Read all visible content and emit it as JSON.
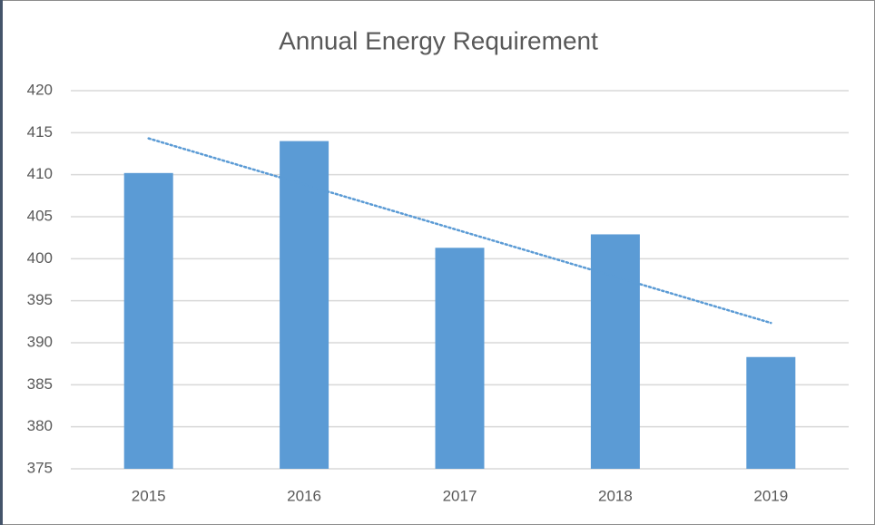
{
  "chart_data": {
    "type": "bar",
    "title": "Annual Energy Requirement",
    "categories": [
      "2015",
      "2016",
      "2017",
      "2018",
      "2019"
    ],
    "values": [
      410.2,
      414.0,
      401.3,
      402.9,
      388.3
    ],
    "color": "#5b9bd5",
    "ylim": [
      375,
      420
    ],
    "yticks": [
      375,
      380,
      385,
      390,
      395,
      400,
      405,
      410,
      415,
      420
    ],
    "grid": true,
    "trendline": "linear"
  }
}
